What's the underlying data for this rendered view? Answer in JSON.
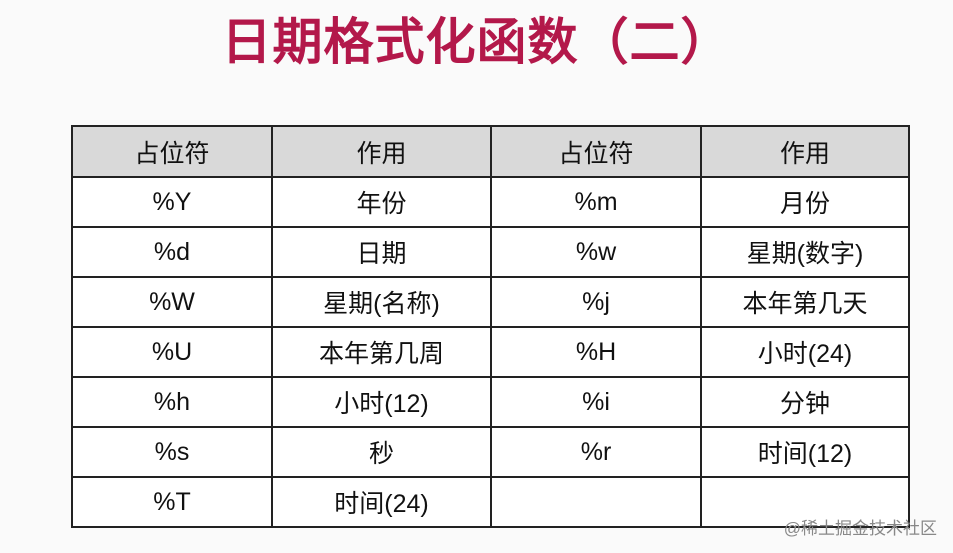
{
  "title": "日期格式化函数（二）",
  "table": {
    "headers": [
      "占位符",
      "作用",
      "占位符",
      "作用"
    ],
    "rows": [
      [
        "%Y",
        "年份",
        "%m",
        "月份"
      ],
      [
        "%d",
        "日期",
        "%w",
        "星期(数字)"
      ],
      [
        "%W",
        "星期(名称)",
        "%j",
        "本年第几天"
      ],
      [
        "%U",
        "本年第几周",
        "%H",
        "小时(24)"
      ],
      [
        "%h",
        "小时(12)",
        "%i",
        "分钟"
      ],
      [
        "%s",
        "秒",
        "%r",
        "时间(12)"
      ],
      [
        "%T",
        "时间(24)",
        "",
        ""
      ]
    ]
  },
  "watermark": "@稀土掘金技术社区",
  "colors": {
    "title": "#b3184a",
    "header_bg": "#d9d9d9"
  }
}
